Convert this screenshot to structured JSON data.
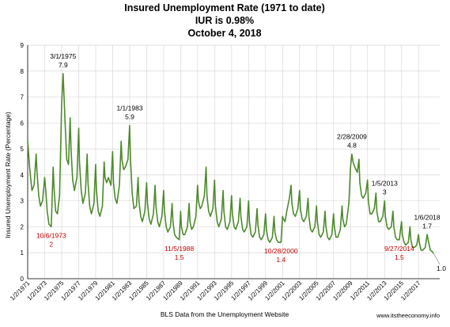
{
  "chart_data": {
    "type": "line",
    "title_lines": [
      "Insured Unemployment Rate (1971 to date)",
      "IUR is 0.98%",
      "October 4, 2018"
    ],
    "ylabel": "Insured Unemployment Rate (Percentage)",
    "xlabel": "BLS Data from the Unemployment Website",
    "source_note": "www.itstheeconomy.info",
    "ylim": [
      0,
      9
    ],
    "yticks": [
      "0",
      "1",
      "2",
      "3",
      "4",
      "5",
      "6",
      "7",
      "8",
      "9"
    ],
    "xlim": [
      1971.0,
      2019.5
    ],
    "xticks": [
      "1/2/1971",
      "1/2/1973",
      "1/2/1975",
      "1/2/1977",
      "1/2/1979",
      "1/2/1981",
      "1/2/1983",
      "1/2/1985",
      "1/2/1987",
      "1/2/1989",
      "1/2/1991",
      "1/2/1993",
      "1/2/1995",
      "1/2/1997",
      "1/2/1999",
      "1/2/2001",
      "1/2/2003",
      "1/2/2005",
      "1/2/2007",
      "1/2/2009",
      "1/2/2011",
      "1/2/2013",
      "1/2/2015",
      "1/2/2017"
    ],
    "grid": true,
    "series_color": "#4e8a2c",
    "series": [
      {
        "x": [
          1971.0,
          1971.25,
          1971.5,
          1971.75,
          1972.0,
          1972.1,
          1972.3,
          1972.5,
          1972.75,
          1973.0,
          1973.1,
          1973.3,
          1973.5,
          1973.77,
          1974.0,
          1974.1,
          1974.3,
          1974.5,
          1974.75,
          1975.0,
          1975.17,
          1975.4,
          1975.6,
          1975.8,
          1976.0,
          1976.1,
          1976.3,
          1976.5,
          1976.8,
          1977.0,
          1977.1,
          1977.3,
          1977.5,
          1977.8,
          1978.0,
          1978.1,
          1978.3,
          1978.5,
          1978.8,
          1979.0,
          1979.1,
          1979.3,
          1979.5,
          1979.8,
          1980.0,
          1980.1,
          1980.3,
          1980.5,
          1980.8,
          1981.0,
          1981.1,
          1981.3,
          1981.5,
          1981.8,
          1982.0,
          1982.1,
          1982.3,
          1982.5,
          1982.8,
          1983.0,
          1983.1,
          1983.3,
          1983.5,
          1983.8,
          1984.0,
          1984.1,
          1984.3,
          1984.5,
          1984.8,
          1985.0,
          1985.1,
          1985.3,
          1985.5,
          1985.8,
          1986.0,
          1986.1,
          1986.3,
          1986.5,
          1986.8,
          1987.0,
          1987.1,
          1987.3,
          1987.5,
          1987.8,
          1988.0,
          1988.1,
          1988.3,
          1988.5,
          1988.84,
          1989.0,
          1989.1,
          1989.3,
          1989.5,
          1989.8,
          1990.0,
          1990.1,
          1990.3,
          1990.5,
          1990.8,
          1991.0,
          1991.1,
          1991.3,
          1991.5,
          1991.8,
          1992.0,
          1992.1,
          1992.3,
          1992.5,
          1992.8,
          1993.0,
          1993.1,
          1993.3,
          1993.5,
          1993.8,
          1994.0,
          1994.1,
          1994.3,
          1994.5,
          1994.8,
          1995.0,
          1995.1,
          1995.3,
          1995.5,
          1995.8,
          1996.0,
          1996.1,
          1996.3,
          1996.5,
          1996.8,
          1997.0,
          1997.1,
          1997.3,
          1997.5,
          1997.8,
          1998.0,
          1998.1,
          1998.3,
          1998.5,
          1998.8,
          1999.0,
          1999.1,
          1999.3,
          1999.5,
          1999.8,
          2000.0,
          2000.1,
          2000.3,
          2000.5,
          2000.82,
          2001.0,
          2001.1,
          2001.3,
          2001.5,
          2001.8,
          2002.0,
          2002.1,
          2002.3,
          2002.5,
          2002.8,
          2003.0,
          2003.1,
          2003.3,
          2003.5,
          2003.8,
          2004.0,
          2004.1,
          2004.3,
          2004.5,
          2004.8,
          2005.0,
          2005.1,
          2005.3,
          2005.5,
          2005.8,
          2006.0,
          2006.1,
          2006.3,
          2006.5,
          2006.8,
          2007.0,
          2007.1,
          2007.3,
          2007.5,
          2007.8,
          2008.0,
          2008.1,
          2008.3,
          2008.5,
          2008.8,
          2009.0,
          2009.16,
          2009.3,
          2009.5,
          2009.8,
          2010.0,
          2010.1,
          2010.3,
          2010.5,
          2010.8,
          2011.0,
          2011.1,
          2011.3,
          2011.5,
          2011.8,
          2012.0,
          2012.1,
          2012.3,
          2012.5,
          2012.8,
          2013.01,
          2013.1,
          2013.3,
          2013.5,
          2013.8,
          2014.0,
          2014.1,
          2014.3,
          2014.5,
          2014.74,
          2015.0,
          2015.1,
          2015.3,
          2015.5,
          2015.8,
          2016.0,
          2016.1,
          2016.3,
          2016.5,
          2016.8,
          2017.0,
          2017.1,
          2017.3,
          2017.5,
          2017.8,
          2018.02,
          2018.2,
          2018.4,
          2018.6,
          2018.76
        ],
        "y": [
          5.3,
          4.2,
          3.4,
          3.6,
          4.8,
          4.1,
          3.2,
          2.8,
          3.0,
          3.9,
          3.5,
          2.6,
          2.1,
          2.0,
          4.3,
          3.5,
          2.6,
          2.5,
          3.2,
          6.8,
          7.9,
          6.0,
          4.6,
          4.4,
          6.2,
          5.0,
          3.8,
          3.4,
          3.9,
          5.8,
          4.5,
          3.4,
          2.9,
          3.3,
          4.8,
          3.7,
          2.8,
          2.5,
          2.9,
          4.4,
          3.4,
          2.6,
          2.4,
          2.8,
          4.5,
          3.9,
          3.7,
          3.9,
          3.6,
          4.9,
          3.7,
          3.1,
          2.9,
          3.6,
          5.3,
          4.6,
          4.2,
          4.3,
          4.6,
          5.9,
          4.6,
          3.3,
          2.7,
          2.8,
          3.9,
          3.0,
          2.4,
          2.2,
          2.6,
          3.7,
          2.9,
          2.3,
          2.1,
          2.5,
          3.6,
          2.8,
          2.2,
          2.0,
          2.4,
          3.4,
          2.6,
          2.0,
          1.8,
          2.0,
          2.9,
          2.2,
          1.7,
          1.6,
          1.5,
          2.6,
          2.0,
          1.7,
          1.7,
          2.0,
          2.9,
          2.2,
          1.9,
          2.0,
          2.4,
          3.6,
          3.0,
          2.7,
          2.8,
          3.2,
          4.3,
          3.2,
          2.6,
          2.4,
          2.7,
          3.8,
          2.8,
          2.2,
          2.0,
          2.3,
          3.4,
          2.6,
          2.0,
          1.9,
          2.2,
          3.2,
          2.5,
          2.0,
          1.9,
          2.2,
          3.1,
          2.4,
          1.9,
          1.8,
          2.0,
          3.0,
          2.2,
          1.7,
          1.6,
          1.8,
          2.7,
          2.1,
          1.6,
          1.5,
          1.7,
          2.5,
          1.9,
          1.5,
          1.4,
          1.6,
          2.4,
          1.8,
          1.5,
          1.4,
          1.4,
          2.4,
          2.3,
          2.2,
          2.6,
          3.1,
          3.6,
          2.9,
          2.5,
          2.4,
          2.7,
          3.4,
          2.7,
          2.3,
          2.2,
          2.4,
          3.1,
          2.4,
          1.9,
          1.8,
          2.0,
          2.8,
          2.2,
          1.7,
          1.6,
          1.8,
          2.6,
          2.0,
          1.6,
          1.5,
          1.7,
          2.5,
          2.0,
          1.6,
          1.6,
          1.9,
          2.8,
          2.3,
          2.0,
          2.1,
          2.9,
          4.3,
          4.8,
          4.5,
          4.3,
          4.1,
          4.6,
          3.7,
          3.2,
          3.1,
          3.3,
          3.8,
          3.0,
          2.5,
          2.5,
          2.7,
          3.3,
          2.6,
          2.2,
          2.2,
          2.4,
          3.0,
          2.4,
          2.0,
          1.9,
          2.0,
          2.6,
          2.0,
          1.6,
          1.5,
          1.5,
          2.2,
          1.7,
          1.4,
          1.3,
          1.4,
          2.0,
          1.5,
          1.2,
          1.2,
          1.3,
          1.7,
          1.4,
          1.1,
          1.1,
          1.2,
          1.7,
          1.4,
          1.1,
          1.05,
          0.98
        ]
      }
    ],
    "annotations": [
      {
        "x": 1975.17,
        "y": 7.9,
        "lines": [
          "3/1/1975",
          "7.9"
        ],
        "color": "black",
        "pos": "above"
      },
      {
        "x": 1983.01,
        "y": 5.9,
        "lines": [
          "1/1/1983",
          "5.9"
        ],
        "color": "black",
        "pos": "above"
      },
      {
        "x": 2009.16,
        "y": 4.8,
        "lines": [
          "2/28/2009",
          "4.8"
        ],
        "color": "black",
        "pos": "above"
      },
      {
        "x": 2013.01,
        "y": 3.0,
        "lines": [
          "1/5/2013",
          "3"
        ],
        "color": "black",
        "pos": "above"
      },
      {
        "x": 2018.02,
        "y": 1.7,
        "lines": [
          "1/6/2018",
          "1.7"
        ],
        "color": "black",
        "pos": "above"
      },
      {
        "x": 1973.77,
        "y": 2.0,
        "lines": [
          "10/6/1973",
          "2"
        ],
        "color": "red",
        "pos": "below"
      },
      {
        "x": 1988.84,
        "y": 1.5,
        "lines": [
          "11/5/1988",
          "1.5"
        ],
        "color": "red",
        "pos": "below"
      },
      {
        "x": 2000.82,
        "y": 1.4,
        "lines": [
          "10/28/2000",
          "1.4"
        ],
        "color": "red",
        "pos": "below"
      },
      {
        "x": 2014.74,
        "y": 1.5,
        "lines": [
          "9/27/2014",
          "1.5"
        ],
        "color": "red",
        "pos": "below"
      },
      {
        "x": 2018.76,
        "y": 0.98,
        "lines": [
          "1.0"
        ],
        "color": "black",
        "pos": "lastpoint"
      }
    ]
  }
}
